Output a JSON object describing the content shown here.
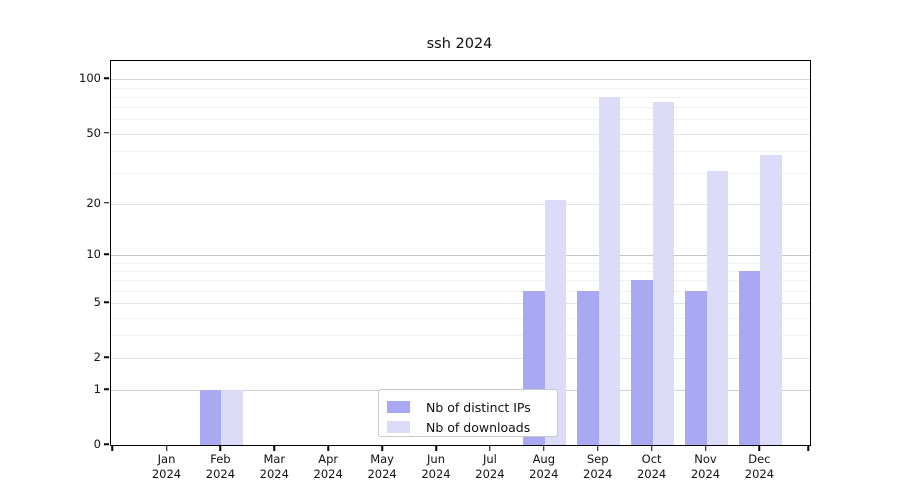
{
  "title": "ssh 2024",
  "y_axis": {
    "tick_labels": [
      "0",
      "1",
      "2",
      "5",
      "10",
      "20",
      "50",
      "100"
    ]
  },
  "x_axis": {
    "months": [
      "Jan",
      "Feb",
      "Mar",
      "Apr",
      "May",
      "Jun",
      "Jul",
      "Aug",
      "Sep",
      "Oct",
      "Nov",
      "Dec"
    ],
    "year": "2024"
  },
  "legend": {
    "items": [
      {
        "label": "Nb of distinct IPs",
        "color": "#a9a9f3"
      },
      {
        "label": "Nb of downloads",
        "color": "#dcdcf9"
      }
    ]
  },
  "chart_data": {
    "type": "bar",
    "title": "ssh 2024",
    "categories": [
      "Jan 2024",
      "Feb 2024",
      "Mar 2024",
      "Apr 2024",
      "May 2024",
      "Jun 2024",
      "Jul 2024",
      "Aug 2024",
      "Sep 2024",
      "Oct 2024",
      "Nov 2024",
      "Dec 2024"
    ],
    "series": [
      {
        "name": "Nb of distinct IPs",
        "color": "#a9a9f3",
        "values": [
          0,
          1,
          0,
          0,
          0,
          0,
          0,
          6,
          6,
          7,
          6,
          8
        ]
      },
      {
        "name": "Nb of downloads",
        "color": "#dcdcf9",
        "values": [
          0,
          1,
          0,
          0,
          0,
          0,
          0,
          21,
          80,
          75,
          31,
          38
        ]
      }
    ],
    "xlabel": "",
    "ylabel": "",
    "y_scale": "log10(1+y)",
    "y_ticks": [
      0,
      1,
      2,
      5,
      10,
      20,
      50,
      100
    ],
    "y_minor_gridlines": [
      3,
      4,
      6,
      7,
      8,
      9,
      30,
      40,
      60,
      70,
      80,
      90
    ],
    "ylim": [
      0,
      126
    ],
    "grid": true,
    "legend_position": "lower-center"
  }
}
